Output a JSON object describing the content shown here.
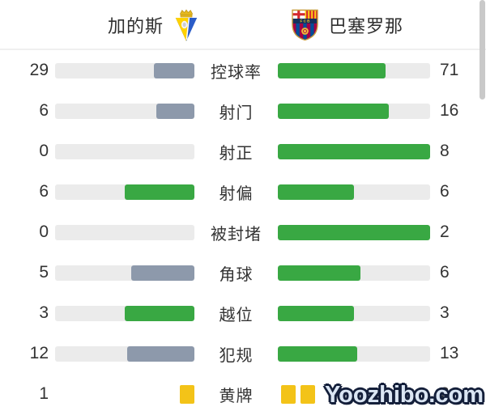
{
  "header": {
    "home_team": "加的斯",
    "away_team": "巴塞罗那"
  },
  "colors": {
    "green": "#39a843",
    "gray_blue": "#8d99ab",
    "track": "#ebebeb",
    "yellow_card": "#f3c318",
    "text": "#333333"
  },
  "stats": {
    "rows": [
      {
        "label": "控球率",
        "left": "29",
        "right": "71",
        "left_pct": 29,
        "right_pct": 71,
        "left_color": "gray"
      },
      {
        "label": "射门",
        "left": "6",
        "right": "16",
        "left_pct": 27.3,
        "right_pct": 72.7,
        "left_color": "gray"
      },
      {
        "label": "射正",
        "left": "0",
        "right": "8",
        "left_pct": 0,
        "right_pct": 100,
        "left_color": "gray"
      },
      {
        "label": "射偏",
        "left": "6",
        "right": "6",
        "left_pct": 50,
        "right_pct": 50,
        "left_color": "green"
      },
      {
        "label": "被封堵",
        "left": "0",
        "right": "2",
        "left_pct": 0,
        "right_pct": 100,
        "left_color": "gray"
      },
      {
        "label": "角球",
        "left": "5",
        "right": "6",
        "left_pct": 45.5,
        "right_pct": 54.5,
        "left_color": "gray"
      },
      {
        "label": "越位",
        "left": "3",
        "right": "3",
        "left_pct": 50,
        "right_pct": 50,
        "left_color": "green"
      },
      {
        "label": "犯规",
        "left": "12",
        "right": "13",
        "left_pct": 48,
        "right_pct": 52,
        "left_color": "gray"
      },
      {
        "label": "黄牌",
        "left": "1",
        "right": "2",
        "type": "cards",
        "left_cards": 1,
        "right_cards": 2
      }
    ]
  },
  "watermark": {
    "text": "Yoozhibo.com"
  }
}
